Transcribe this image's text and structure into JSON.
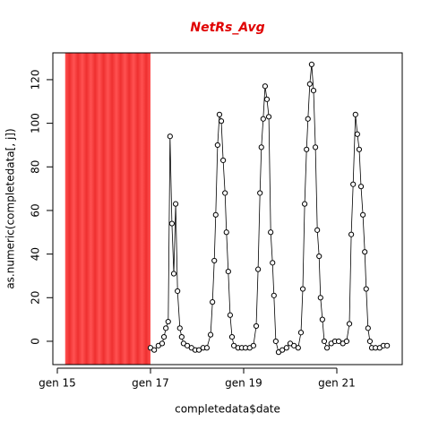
{
  "chart_data": {
    "type": "line",
    "title": "NetRs_Avg",
    "title_color": "#e00000",
    "x_label": "completedata$date",
    "y_label": "as.numeric(completedata[, j])",
    "shaded_region": [
      15.17,
      17
    ],
    "shade_color": "#ff3030",
    "color": "#000000",
    "xlim": [
      14.904,
      22.404
    ],
    "ylim": [
      -10.7,
      132.3
    ],
    "xticks": [
      {
        "value": 15,
        "label": "gen 15"
      },
      {
        "value": 17,
        "label": "gen 17"
      },
      {
        "value": 19,
        "label": "gen 19"
      },
      {
        "value": 21,
        "label": "gen 21"
      }
    ],
    "yticks": [
      0,
      20,
      40,
      60,
      80,
      100,
      120
    ],
    "x": [
      17.0,
      17.08,
      17.17,
      17.25,
      17.29,
      17.33,
      17.38,
      17.42,
      17.46,
      17.5,
      17.54,
      17.58,
      17.63,
      17.67,
      17.71,
      17.79,
      17.88,
      17.96,
      18.04,
      18.13,
      18.21,
      18.29,
      18.33,
      18.37,
      18.4,
      18.44,
      18.48,
      18.52,
      18.56,
      18.6,
      18.63,
      18.67,
      18.71,
      18.75,
      18.79,
      18.88,
      18.96,
      19.04,
      19.13,
      19.21,
      19.27,
      19.31,
      19.35,
      19.38,
      19.42,
      19.46,
      19.5,
      19.54,
      19.58,
      19.62,
      19.65,
      19.69,
      19.75,
      19.83,
      19.92,
      20.0,
      20.08,
      20.17,
      20.23,
      20.27,
      20.31,
      20.35,
      20.38,
      20.42,
      20.46,
      20.5,
      20.54,
      20.58,
      20.62,
      20.65,
      20.69,
      20.73,
      20.79,
      20.88,
      20.96,
      21.04,
      21.13,
      21.21,
      21.27,
      21.31,
      21.35,
      21.4,
      21.44,
      21.48,
      21.52,
      21.56,
      21.6,
      21.63,
      21.67,
      21.71,
      21.75,
      21.83,
      21.92,
      22.0,
      22.08
    ],
    "y": [
      -3,
      -4,
      -2,
      -1,
      2,
      6,
      9,
      94,
      54,
      31,
      63,
      23,
      6,
      2,
      -1,
      -2,
      -3,
      -4,
      -4,
      -3,
      -3,
      3,
      18,
      37,
      58,
      90,
      104,
      101,
      83,
      68,
      50,
      32,
      12,
      2,
      -2,
      -3,
      -3,
      -3,
      -3,
      -2,
      7,
      33,
      68,
      89,
      102,
      117,
      111,
      103,
      50,
      36,
      21,
      0,
      -5,
      -4,
      -3,
      -1,
      -2,
      -3,
      4,
      24,
      63,
      88,
      102,
      118,
      127,
      115,
      89,
      51,
      39,
      20,
      10,
      0,
      -3,
      -1,
      0,
      0,
      -1,
      0,
      8,
      49,
      72,
      104,
      95,
      88,
      71,
      58,
      41,
      24,
      6,
      0,
      -3,
      -3,
      -3,
      -2,
      -2
    ]
  }
}
